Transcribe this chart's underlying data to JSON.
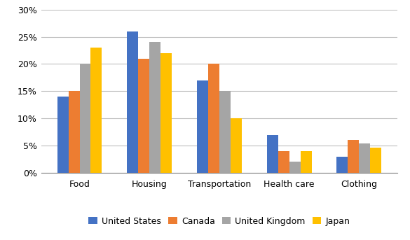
{
  "categories": [
    "Food",
    "Housing",
    "Transportation",
    "Health care",
    "Clothing"
  ],
  "series": [
    {
      "name": "United States",
      "color": "#4472C4",
      "values": [
        0.14,
        0.26,
        0.17,
        0.07,
        0.03
      ]
    },
    {
      "name": "Canada",
      "color": "#ED7D31",
      "values": [
        0.15,
        0.21,
        0.2,
        0.04,
        0.06
      ]
    },
    {
      "name": "United Kingdom",
      "color": "#A5A5A5",
      "values": [
        0.2,
        0.24,
        0.15,
        0.02,
        0.054
      ]
    },
    {
      "name": "Japan",
      "color": "#FFC000",
      "values": [
        0.23,
        0.22,
        0.1,
        0.04,
        0.046
      ]
    }
  ],
  "ylim": [
    0,
    0.3
  ],
  "yticks": [
    0,
    0.05,
    0.1,
    0.15,
    0.2,
    0.25,
    0.3
  ],
  "background_color": "#FFFFFF",
  "grid_color": "#BFBFBF",
  "legend_ncol": 4,
  "bar_width": 0.16,
  "title_fontsize": 9,
  "axis_fontsize": 9
}
